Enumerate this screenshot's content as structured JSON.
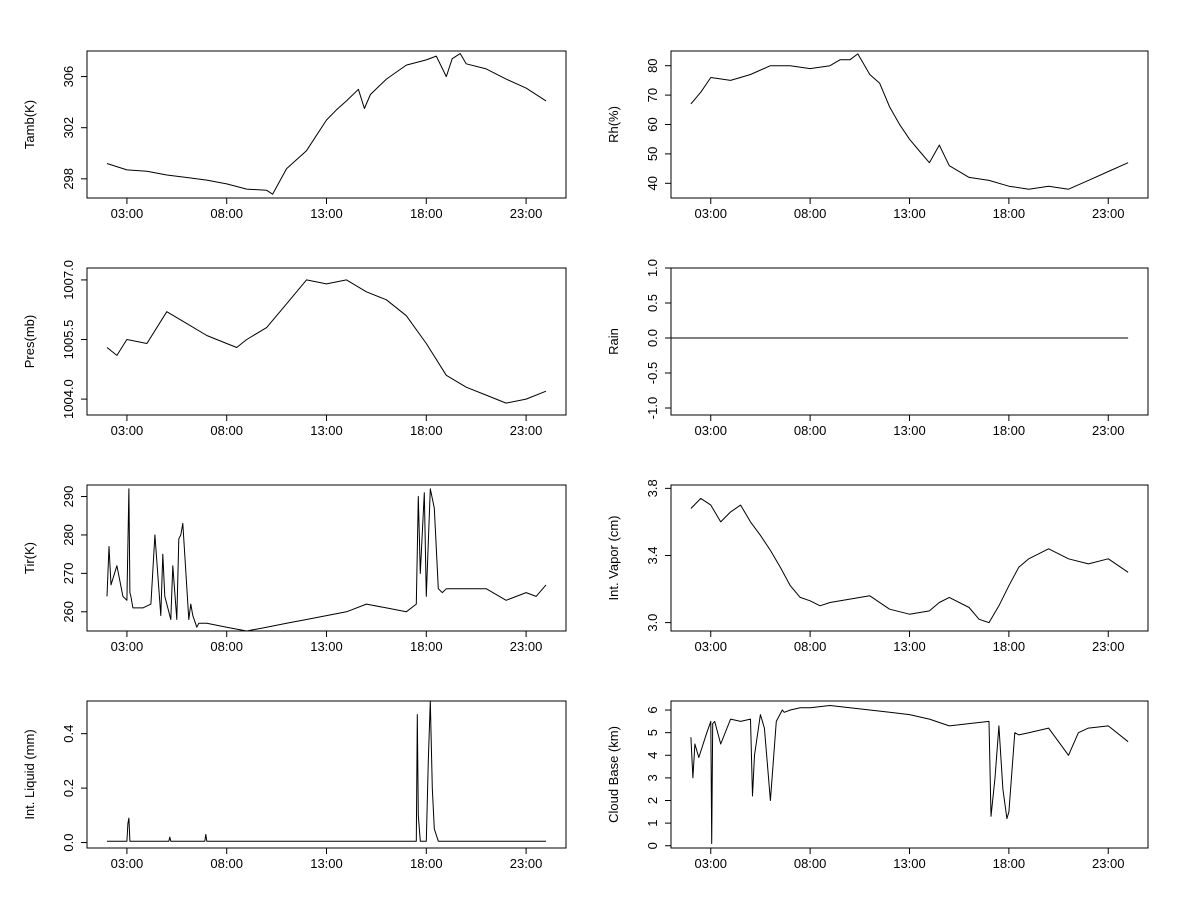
{
  "chart_data": [
    {
      "type": "line",
      "ylabel": "Tamb(K)",
      "xlim": [
        0,
        24
      ],
      "ylim": [
        296.5,
        308
      ],
      "xticks": [
        2,
        7,
        12,
        17,
        22
      ],
      "xtick_labels": [
        "03:00",
        "08:00",
        "13:00",
        "18:00",
        "23:00"
      ],
      "yticks": [
        298,
        302,
        306
      ],
      "ytick_labels": [
        "298",
        "302",
        "306"
      ],
      "x": [
        1,
        2,
        3,
        4,
        5,
        6,
        7,
        8,
        9,
        9.3,
        10,
        11,
        12,
        12.5,
        13,
        13.6,
        13.9,
        14.2,
        15,
        16,
        17,
        17.5,
        18,
        18.3,
        18.7,
        19,
        20,
        21,
        22,
        23
      ],
      "y": [
        299.2,
        298.7,
        298.6,
        298.3,
        298.1,
        297.9,
        297.6,
        297.2,
        297.1,
        296.8,
        298.8,
        300.2,
        302.6,
        303.4,
        304.1,
        305.0,
        303.5,
        304.6,
        305.8,
        306.9,
        307.3,
        307.6,
        306.0,
        307.4,
        307.8,
        307.0,
        306.6,
        305.8,
        305.1,
        304.1
      ]
    },
    {
      "type": "line",
      "ylabel": "Rh(%)",
      "xlim": [
        0,
        24
      ],
      "ylim": [
        35,
        85
      ],
      "xticks": [
        2,
        7,
        12,
        17,
        22
      ],
      "xtick_labels": [
        "03:00",
        "08:00",
        "13:00",
        "18:00",
        "23:00"
      ],
      "yticks": [
        40,
        50,
        60,
        70,
        80
      ],
      "ytick_labels": [
        "40",
        "50",
        "60",
        "70",
        "80"
      ],
      "x": [
        1,
        1.5,
        2,
        3,
        4,
        5,
        6,
        7,
        8,
        8.5,
        9,
        9.4,
        10,
        10.5,
        11,
        11.5,
        12,
        12.5,
        13,
        13.5,
        14,
        15,
        16,
        17,
        18,
        19,
        20,
        21,
        22,
        23
      ],
      "y": [
        67,
        71,
        76,
        75,
        77,
        80,
        80,
        79,
        80,
        82,
        82,
        84,
        77,
        74,
        66,
        60,
        55,
        51,
        47,
        53,
        46,
        42,
        41,
        39,
        38,
        39,
        38,
        41,
        44,
        47
      ]
    },
    {
      "type": "line",
      "ylabel": "Pres(mb)",
      "xlim": [
        0,
        24
      ],
      "ylim": [
        1003.6,
        1007.3
      ],
      "xticks": [
        2,
        7,
        12,
        17,
        22
      ],
      "xtick_labels": [
        "03:00",
        "08:00",
        "13:00",
        "18:00",
        "23:00"
      ],
      "yticks": [
        1004.0,
        1005.5,
        1007.0
      ],
      "ytick_labels": [
        "1004.0",
        "1005.5",
        "1007.0"
      ],
      "x": [
        1,
        1.5,
        2,
        3,
        4,
        5,
        6,
        7,
        7.5,
        8,
        9,
        10,
        11,
        12,
        13,
        14,
        15,
        16,
        17,
        18,
        19,
        20,
        21,
        22,
        23
      ],
      "y": [
        1005.3,
        1005.1,
        1005.5,
        1005.4,
        1006.2,
        1005.9,
        1005.6,
        1005.4,
        1005.3,
        1005.5,
        1005.8,
        1006.4,
        1007.0,
        1006.9,
        1007.0,
        1006.7,
        1006.5,
        1006.1,
        1005.4,
        1004.6,
        1004.3,
        1004.1,
        1003.9,
        1004.0,
        1004.2
      ]
    },
    {
      "type": "line",
      "ylabel": "Rain",
      "xlim": [
        0,
        24
      ],
      "ylim": [
        -1.1,
        1.0
      ],
      "xticks": [
        2,
        7,
        12,
        17,
        22
      ],
      "xtick_labels": [
        "03:00",
        "08:00",
        "13:00",
        "18:00",
        "23:00"
      ],
      "yticks": [
        -1.0,
        -0.5,
        0.0,
        0.5,
        1.0
      ],
      "ytick_labels": [
        "-1.0",
        "-0.5",
        "0.0",
        "0.5",
        "1.0"
      ],
      "x": [
        0,
        23
      ],
      "y": [
        0,
        0
      ]
    },
    {
      "type": "line",
      "ylabel": "Tir(K)",
      "xlim": [
        0,
        24
      ],
      "ylim": [
        255,
        293
      ],
      "xticks": [
        2,
        7,
        12,
        17,
        22
      ],
      "xtick_labels": [
        "03:00",
        "08:00",
        "13:00",
        "18:00",
        "23:00"
      ],
      "yticks": [
        260,
        270,
        280,
        290
      ],
      "ytick_labels": [
        "260",
        "270",
        "280",
        "290"
      ],
      "x": [
        1,
        1.1,
        1.2,
        1.5,
        1.8,
        2,
        2.1,
        2.15,
        2.2,
        2.3,
        2.6,
        2.8,
        3.2,
        3.4,
        3.7,
        3.8,
        3.9,
        4.1,
        4.2,
        4.3,
        4.5,
        4.6,
        4.7,
        4.8,
        5.1,
        5.2,
        5.3,
        5.5,
        5.6,
        6,
        7,
        8,
        9,
        10,
        11,
        12,
        13,
        14,
        15,
        16,
        16.5,
        16.6,
        16.7,
        16.9,
        17,
        17.2,
        17.4,
        17.6,
        17.8,
        18,
        18.4,
        19,
        20,
        21,
        22,
        22.5,
        23
      ],
      "y": [
        264,
        277,
        267,
        272,
        264,
        263,
        292,
        265,
        264,
        261,
        261,
        261,
        262,
        280,
        259,
        275,
        264,
        260,
        258,
        272,
        258,
        279,
        280,
        283,
        258,
        262,
        259,
        256,
        257,
        257,
        256,
        255,
        256,
        257,
        258,
        259,
        260,
        262,
        261,
        260,
        262,
        290,
        270,
        291,
        264,
        292,
        287,
        266,
        265,
        266,
        266,
        266,
        266,
        263,
        265,
        264,
        267
      ]
    },
    {
      "type": "line",
      "ylabel": "Int. Vapor (cm)",
      "xlim": [
        0,
        24
      ],
      "ylim": [
        2.95,
        3.82
      ],
      "xticks": [
        2,
        7,
        12,
        17,
        22
      ],
      "xtick_labels": [
        "03:00",
        "08:00",
        "13:00",
        "18:00",
        "23:00"
      ],
      "yticks": [
        3.0,
        3.4,
        3.8
      ],
      "ytick_labels": [
        "3.0",
        "3.4",
        "3.8"
      ],
      "x": [
        1,
        1.5,
        2,
        2.5,
        3,
        3.5,
        4,
        4.5,
        5,
        5.5,
        6,
        6.5,
        7,
        7.5,
        8,
        9,
        10,
        11,
        12,
        13,
        13.5,
        14,
        15,
        15.5,
        16,
        16.5,
        17,
        17.5,
        18,
        19,
        20,
        21,
        22,
        23
      ],
      "y": [
        3.68,
        3.74,
        3.7,
        3.6,
        3.66,
        3.7,
        3.6,
        3.52,
        3.43,
        3.33,
        3.22,
        3.15,
        3.13,
        3.1,
        3.12,
        3.14,
        3.16,
        3.08,
        3.05,
        3.07,
        3.12,
        3.15,
        3.09,
        3.02,
        3.0,
        3.1,
        3.22,
        3.33,
        3.38,
        3.44,
        3.38,
        3.35,
        3.38,
        3.3
      ]
    },
    {
      "type": "line",
      "ylabel": "Int. Liquid (mm)",
      "xlim": [
        0,
        24
      ],
      "ylim": [
        -0.02,
        0.52
      ],
      "xticks": [
        2,
        7,
        12,
        17,
        22
      ],
      "xtick_labels": [
        "03:00",
        "08:00",
        "13:00",
        "18:00",
        "23:00"
      ],
      "yticks": [
        0.0,
        0.2,
        0.4
      ],
      "ytick_labels": [
        "0.0",
        "0.2",
        "0.4"
      ],
      "x": [
        1,
        2,
        2.05,
        2.1,
        2.15,
        2.3,
        4.1,
        4.15,
        4.2,
        5.9,
        5.95,
        6,
        16.5,
        16.55,
        16.6,
        16.7,
        17,
        17.1,
        17.2,
        17.3,
        17.4,
        17.6,
        23
      ],
      "y": [
        0.005,
        0.005,
        0.07,
        0.09,
        0.005,
        0.005,
        0.005,
        0.02,
        0.005,
        0.005,
        0.03,
        0.005,
        0.005,
        0.47,
        0.1,
        0.005,
        0.005,
        0.3,
        0.52,
        0.2,
        0.05,
        0.005,
        0.005
      ]
    },
    {
      "type": "line",
      "ylabel": "Cloud Base (km)",
      "xlim": [
        0,
        24
      ],
      "ylim": [
        -0.1,
        6.4
      ],
      "xticks": [
        2,
        7,
        12,
        17,
        22
      ],
      "xtick_labels": [
        "03:00",
        "08:00",
        "13:00",
        "18:00",
        "23:00"
      ],
      "yticks": [
        0,
        1,
        2,
        3,
        4,
        5,
        6
      ],
      "ytick_labels": [
        "0",
        "1",
        "2",
        "3",
        "4",
        "5",
        "6"
      ],
      "x": [
        1,
        1.1,
        1.2,
        1.4,
        1.8,
        2,
        2.05,
        2.1,
        2.2,
        2.5,
        3,
        3.5,
        4,
        4.1,
        4.2,
        4.5,
        4.7,
        5,
        5.3,
        5.6,
        5.7,
        6,
        6.5,
        7,
        8,
        9,
        10,
        11,
        12,
        13,
        14,
        15,
        16,
        16.1,
        16.3,
        16.5,
        16.7,
        16.9,
        17,
        17.3,
        17.5,
        18,
        19,
        20,
        20.5,
        21,
        22,
        23
      ],
      "y": [
        4.8,
        3.0,
        4.5,
        3.9,
        5.0,
        5.5,
        0.1,
        5.4,
        5.5,
        4.5,
        5.6,
        5.5,
        5.6,
        2.2,
        4.0,
        5.8,
        5.2,
        2.0,
        5.5,
        6.0,
        5.9,
        6.0,
        6.1,
        6.1,
        6.2,
        6.1,
        6.0,
        5.9,
        5.8,
        5.6,
        5.3,
        5.4,
        5.5,
        1.3,
        3.0,
        5.3,
        2.5,
        1.2,
        1.5,
        5.0,
        4.9,
        5.0,
        5.2,
        4.0,
        5.0,
        5.2,
        5.3,
        4.6
      ]
    }
  ]
}
